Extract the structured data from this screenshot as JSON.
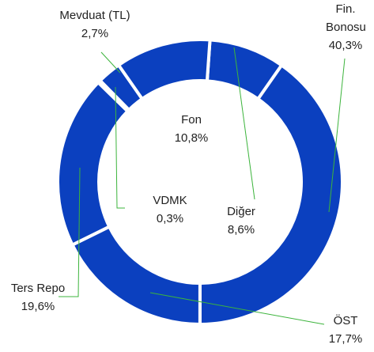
{
  "chart_data": {
    "type": "donut",
    "categories": [
      "Diğer",
      "Fin. Bonosu",
      "ÖST",
      "Ters Repo",
      "VDMK",
      "Mevduat (TL)",
      "Fon"
    ],
    "values": [
      8.6,
      40.3,
      17.7,
      19.6,
      0.3,
      2.7,
      10.8
    ],
    "value_labels": [
      "8,6%",
      "40,3%",
      "17,7%",
      "19,6%",
      "0,3%",
      "2,7%",
      "10,8%"
    ],
    "color": "#0b40bf"
  }
}
